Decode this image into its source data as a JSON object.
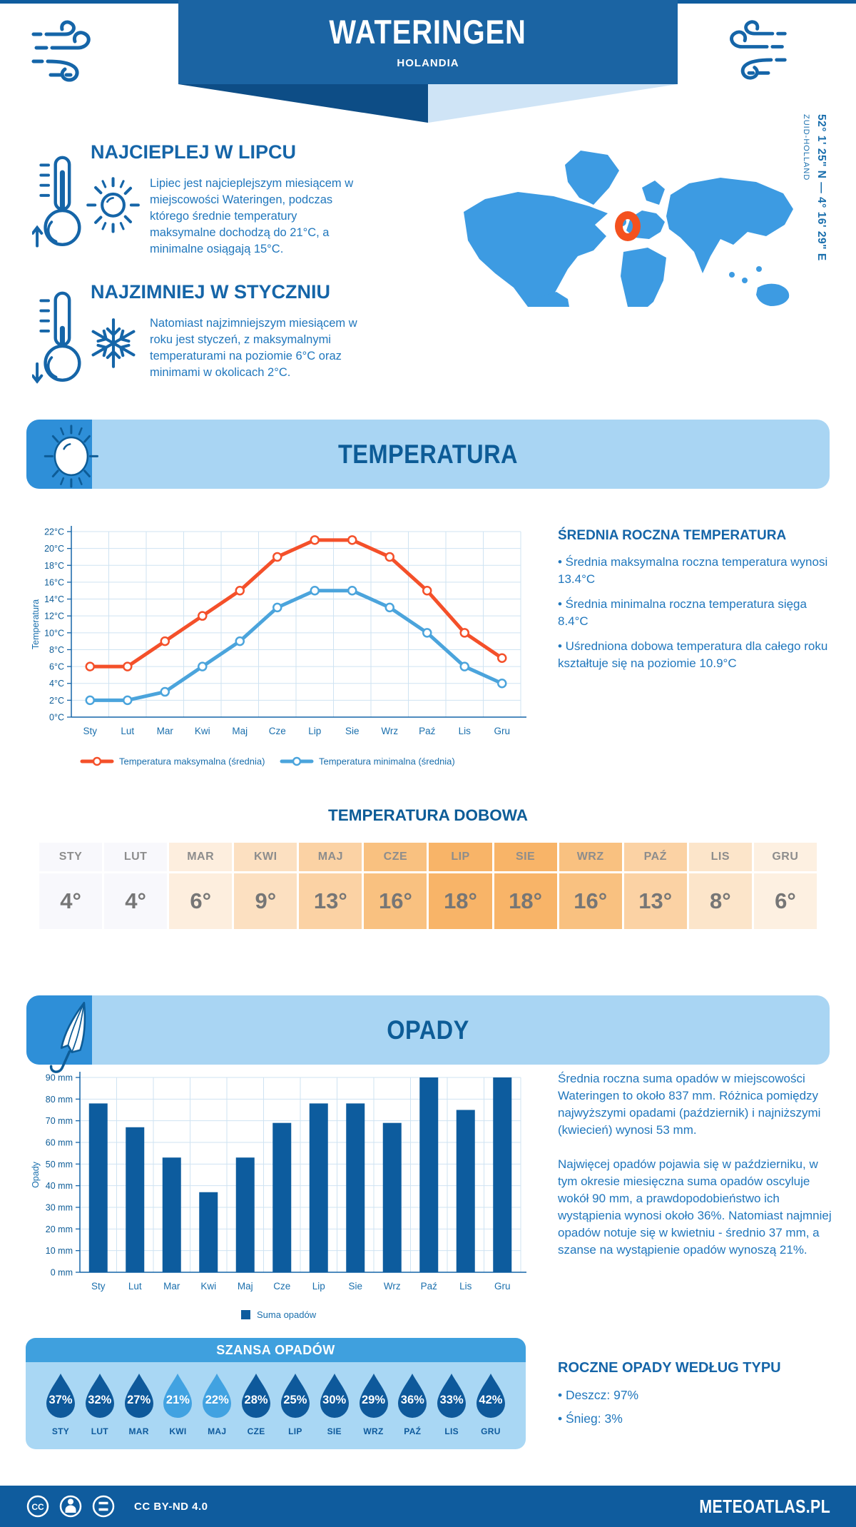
{
  "header": {
    "title": "WATERINGEN",
    "subtitle": "HOLANDIA",
    "coordinates": "52° 1' 25\" N — 4° 16' 29\" E",
    "region": "ZUID-HOLLAND"
  },
  "highlights": [
    {
      "heading": "NAJCIEPLEJ W LIPCU",
      "text": "Lipiec jest najcieplejszym miesiącem w miejscowości Wateringen, podczas którego średnie temperatury maksymalne dochodzą do 21°C, a minimalne osiągają 15°C."
    },
    {
      "heading": "NAJZIMNIEJ W STYCZNIU",
      "text": "Natomiast najzimniejszym miesiącem w roku jest styczeń, z maksymalnymi temperaturami na poziomie 6°C oraz minimami w okolicach 2°C."
    }
  ],
  "temperature": {
    "banner": "TEMPERATURA",
    "annual_heading": "ŚREDNIA ROCZNA TEMPERATURA",
    "annual_bullets": [
      "• Średnia maksymalna roczna temperatura wynosi 13.4°C",
      "• Średnia minimalna roczna temperatura sięga 8.4°C",
      "• Uśredniona dobowa temperatura dla całego roku kształtuje się na poziomie 10.9°C"
    ],
    "daily_heading": "TEMPERATURA DOBOWA",
    "daily_months": [
      "STY",
      "LUT",
      "MAR",
      "KWI",
      "MAJ",
      "CZE",
      "LIP",
      "SIE",
      "WRZ",
      "PAŹ",
      "LIS",
      "GRU"
    ],
    "daily_values": [
      "4°",
      "4°",
      "6°",
      "9°",
      "13°",
      "16°",
      "18°",
      "18°",
      "16°",
      "13°",
      "8°",
      "6°"
    ],
    "daily_colors": [
      "#f8f8fc",
      "#f8f8fc",
      "#fdeede",
      "#fce0c1",
      "#fbd2a4",
      "#f9c180",
      "#f8b468",
      "#f8b468",
      "#f9c180",
      "#fbd2a4",
      "#fce5ca",
      "#fdf0e1"
    ]
  },
  "precipitation": {
    "banner": "OPADY",
    "paragraphs": [
      "Średnia roczna suma opadów w miejscowości Wateringen to około 837 mm. Różnica pomiędzy najwyższymi opadami (październik) i najniższymi (kwiecień) wynosi 53 mm.",
      "Najwięcej opadów pojawia się w październiku, w tym okresie miesięczna suma opadów oscyluje wokół 90 mm, a prawdopodobieństwo ich wystąpienia wynosi około 36%. Natomiast najmniej opadów notuje się w kwietniu - średnio 37 mm, a szanse na wystąpienie opadów wynoszą 21%."
    ],
    "type_heading": "ROCZNE OPADY WEDŁUG TYPU",
    "type_bullets": [
      "• Deszcz: 97%",
      "• Śnieg: 3%"
    ],
    "chance": {
      "title": "SZANSA OPADÓW",
      "months": [
        "STY",
        "LUT",
        "MAR",
        "KWI",
        "MAJ",
        "CZE",
        "LIP",
        "SIE",
        "WRZ",
        "PAŹ",
        "LIS",
        "GRU"
      ],
      "values": [
        37,
        32,
        27,
        21,
        22,
        28,
        25,
        30,
        29,
        36,
        33,
        42
      ],
      "shades": [
        "dark",
        "dark",
        "dark",
        "light",
        "light",
        "dark",
        "dark",
        "dark",
        "dark",
        "dark",
        "dark",
        "dark"
      ],
      "colors": {
        "dark": "#0e599b",
        "light": "#41a2e1"
      }
    }
  },
  "chart_data": [
    {
      "type": "line",
      "title": "Temperatura",
      "categories": [
        "Sty",
        "Lut",
        "Mar",
        "Kwi",
        "Maj",
        "Cze",
        "Lip",
        "Sie",
        "Wrz",
        "Paź",
        "Lis",
        "Gru"
      ],
      "series": [
        {
          "name": "Temperatura maksymalna (średnia)",
          "color": "#f4502a",
          "values": [
            6,
            6,
            9,
            12,
            15,
            19,
            21,
            21,
            19,
            15,
            10,
            7
          ]
        },
        {
          "name": "Temperatura minimalna (średnia)",
          "color": "#4ba4dc",
          "values": [
            2,
            2,
            3,
            6,
            9,
            13,
            15,
            15,
            13,
            10,
            6,
            4
          ]
        }
      ],
      "xlabel": "",
      "ylabel": "Temperatura",
      "ylim": [
        0,
        22
      ],
      "ytick_step": 2,
      "ytick_suffix": "°C",
      "grid": true,
      "legend_position": "bottom"
    },
    {
      "type": "bar",
      "title": "Opady",
      "categories": [
        "Sty",
        "Lut",
        "Mar",
        "Kwi",
        "Maj",
        "Cze",
        "Lip",
        "Sie",
        "Wrz",
        "Paź",
        "Lis",
        "Gru"
      ],
      "series": [
        {
          "name": "Suma opadów",
          "color": "#0d5c9e",
          "values": [
            78,
            67,
            53,
            37,
            53,
            69,
            78,
            78,
            69,
            90,
            75,
            90
          ]
        }
      ],
      "xlabel": "",
      "ylabel": "Opady",
      "ylim": [
        0,
        90
      ],
      "ytick_step": 10,
      "ytick_suffix": " mm",
      "grid": true,
      "legend_position": "bottom"
    }
  ],
  "footer": {
    "license": "CC BY-ND 4.0",
    "brand": "METEOATLAS.PL"
  }
}
